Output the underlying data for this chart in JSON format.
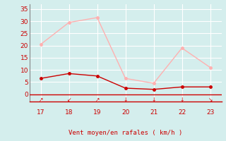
{
  "x": [
    17,
    18,
    19,
    20,
    21,
    22,
    23
  ],
  "rafales": [
    20.5,
    29.5,
    31.5,
    6.5,
    4.5,
    19.0,
    11.0
  ],
  "moyen": [
    6.5,
    8.5,
    7.5,
    2.5,
    2.0,
    3.0,
    3.0
  ],
  "rafales_color": "#ffb0b0",
  "moyen_color": "#cc0000",
  "background_color": "#d4eeed",
  "grid_color": "#b8dede",
  "xlabel": "Vent moyen/en rafales ( km/h )",
  "xlabel_color": "#cc0000",
  "tick_color": "#cc0000",
  "spine_color": "#888888",
  "ylim": [
    -3,
    37
  ],
  "yticks": [
    0,
    5,
    10,
    15,
    20,
    25,
    30,
    35
  ],
  "xticks": [
    17,
    18,
    19,
    20,
    21,
    22,
    23
  ],
  "xlim": [
    16.6,
    23.4
  ],
  "line_width": 1.0,
  "marker_size": 2.5,
  "hline_color": "#cc0000",
  "arrow_display": [
    "↗",
    "↙",
    "↗",
    "↓",
    "↓",
    "↓",
    "↘"
  ]
}
